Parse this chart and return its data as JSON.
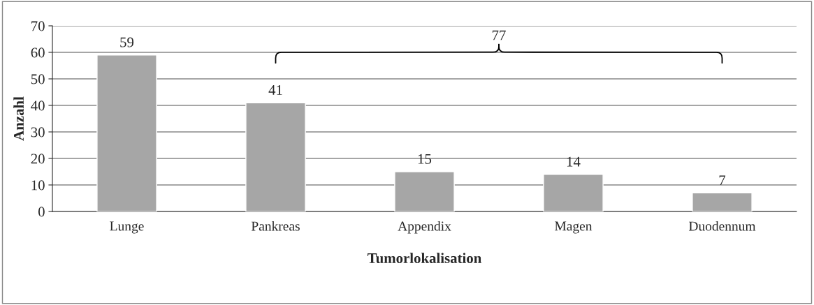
{
  "chart_data": {
    "type": "bar",
    "xlabel": "Tumorlokalisation",
    "ylabel": "Anzahl",
    "categories": [
      "Lunge",
      "Pankreas",
      "Appendix",
      "Magen",
      "Duodennum"
    ],
    "values": [
      59,
      41,
      15,
      14,
      7
    ],
    "color": "#a6a6a6",
    "ylim": [
      0,
      70
    ],
    "yticks": [
      0,
      10,
      20,
      30,
      40,
      50,
      60,
      70
    ],
    "grid": "y",
    "data_labels": true,
    "annotations": [
      "77"
    ]
  }
}
